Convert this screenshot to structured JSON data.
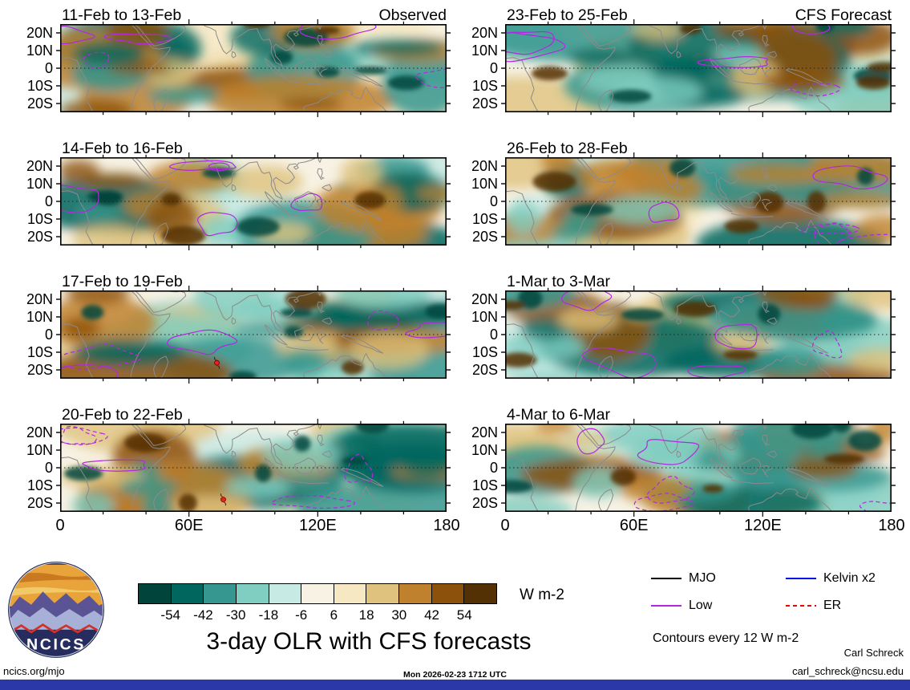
{
  "page": {
    "footer_left": "ncics.org/mjo",
    "footer_center": "Mon 2026-02-23 1712 UTC",
    "credit_name": "Carl Schreck",
    "credit_email": "carl_schreck@ncsu.edu",
    "logo_text": "NCICS",
    "footer_bar_color": "#2a38a8"
  },
  "chart_data": {
    "type": "heatmap",
    "title": "3-day OLR with CFS forecasts",
    "contour_note": "Contours every 12 W m-2",
    "column_headers": [
      "Observed",
      "CFS Forecast"
    ],
    "panels": [
      {
        "title": "11-Feb to 13-Feb",
        "column": "Observed"
      },
      {
        "title": "23-Feb to 25-Feb",
        "column": "CFS Forecast"
      },
      {
        "title": "14-Feb to 16-Feb",
        "column": "Observed"
      },
      {
        "title": "26-Feb to 28-Feb",
        "column": "CFS Forecast"
      },
      {
        "title": "17-Feb to 19-Feb",
        "column": "Observed",
        "storm": {
          "lon": 73,
          "lat": -16
        }
      },
      {
        "title": "1-Mar to 3-Mar",
        "column": "CFS Forecast"
      },
      {
        "title": "20-Feb to 22-Feb",
        "column": "Observed",
        "storm": {
          "lon": 76,
          "lat": -18
        }
      },
      {
        "title": "4-Mar to 6-Mar",
        "column": "CFS Forecast"
      }
    ],
    "x_ticks": [
      {
        "label": "0",
        "lon": 0
      },
      {
        "label": "60E",
        "lon": 60
      },
      {
        "label": "120E",
        "lon": 120
      },
      {
        "label": "180",
        "lon": 180
      }
    ],
    "y_ticks": [
      {
        "label": "20N",
        "lat": 20
      },
      {
        "label": "10N",
        "lat": 10
      },
      {
        "label": "0",
        "lat": 0
      },
      {
        "label": "10S",
        "lat": -10
      },
      {
        "label": "20S",
        "lat": -20
      }
    ],
    "lon_range": [
      0,
      180
    ],
    "lat_range": [
      -25,
      25
    ],
    "colorbar": {
      "unit": "W m-2",
      "levels": [
        -54,
        -42,
        -30,
        -18,
        -6,
        6,
        18,
        30,
        42,
        54
      ],
      "colors": [
        "#00443c",
        "#01665e",
        "#35978f",
        "#80cdc1",
        "#c7eae5",
        "#f7f2e4",
        "#f6e8c3",
        "#dfc27d",
        "#bf812d",
        "#8c510a",
        "#543005"
      ]
    },
    "legend": [
      {
        "label": "MJO",
        "color": "#000000",
        "style": "solid"
      },
      {
        "label": "Low",
        "color": "#b228e0",
        "style": "solid"
      },
      {
        "label": "Kelvin x2",
        "color": "#0010e8",
        "style": "solid"
      },
      {
        "label": "ER",
        "color": "#f00000",
        "style": "dashed"
      }
    ]
  }
}
